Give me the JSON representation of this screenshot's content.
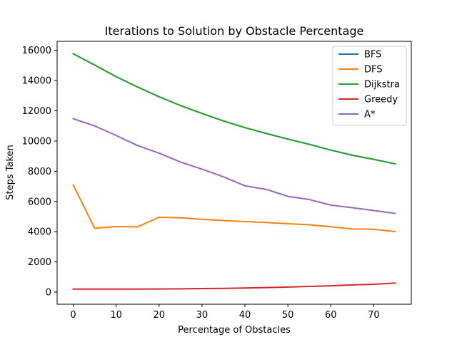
{
  "chart_data": {
    "type": "line",
    "title": "Iterations to Solution by Obstacle Percentage",
    "xlabel": "Percentage of Obstacles",
    "ylabel": "Steps Taken",
    "xlim": [
      -3.75,
      78.75
    ],
    "ylim": [
      -800,
      16600
    ],
    "x_ticks": [
      0,
      10,
      20,
      30,
      40,
      50,
      60,
      70
    ],
    "y_ticks": [
      0,
      2000,
      4000,
      6000,
      8000,
      10000,
      12000,
      14000,
      16000
    ],
    "x": [
      0,
      5,
      10,
      15,
      20,
      25,
      30,
      35,
      40,
      45,
      50,
      55,
      60,
      65,
      70,
      75
    ],
    "series": [
      {
        "name": "BFS",
        "color": "#1f77b4",
        "values": [
          15780,
          15030,
          14260,
          13580,
          12930,
          12350,
          11830,
          11330,
          10890,
          10500,
          10130,
          9780,
          9400,
          9060,
          8790,
          8490
        ]
      },
      {
        "name": "DFS",
        "color": "#ff7f0e",
        "values": [
          7100,
          4230,
          4340,
          4320,
          4960,
          4920,
          4820,
          4740,
          4670,
          4610,
          4530,
          4460,
          4330,
          4180,
          4160,
          4010
        ]
      },
      {
        "name": "Dijkstra",
        "color": "#2ca02c",
        "values": [
          15780,
          15030,
          14260,
          13580,
          12930,
          12350,
          11830,
          11330,
          10890,
          10500,
          10130,
          9780,
          9400,
          9060,
          8790,
          8490
        ]
      },
      {
        "name": "Greedy",
        "color": "#d62728",
        "values": [
          200,
          200,
          200,
          205,
          210,
          220,
          235,
          250,
          270,
          300,
          340,
          380,
          420,
          480,
          520,
          600
        ]
      },
      {
        "name": "A*",
        "color": "#9467bd",
        "values": [
          11480,
          11000,
          10370,
          9700,
          9200,
          8610,
          8140,
          7630,
          7040,
          6800,
          6340,
          6130,
          5760,
          5590,
          5400,
          5210
        ]
      }
    ],
    "grid": false,
    "legend_position": "top-right"
  }
}
